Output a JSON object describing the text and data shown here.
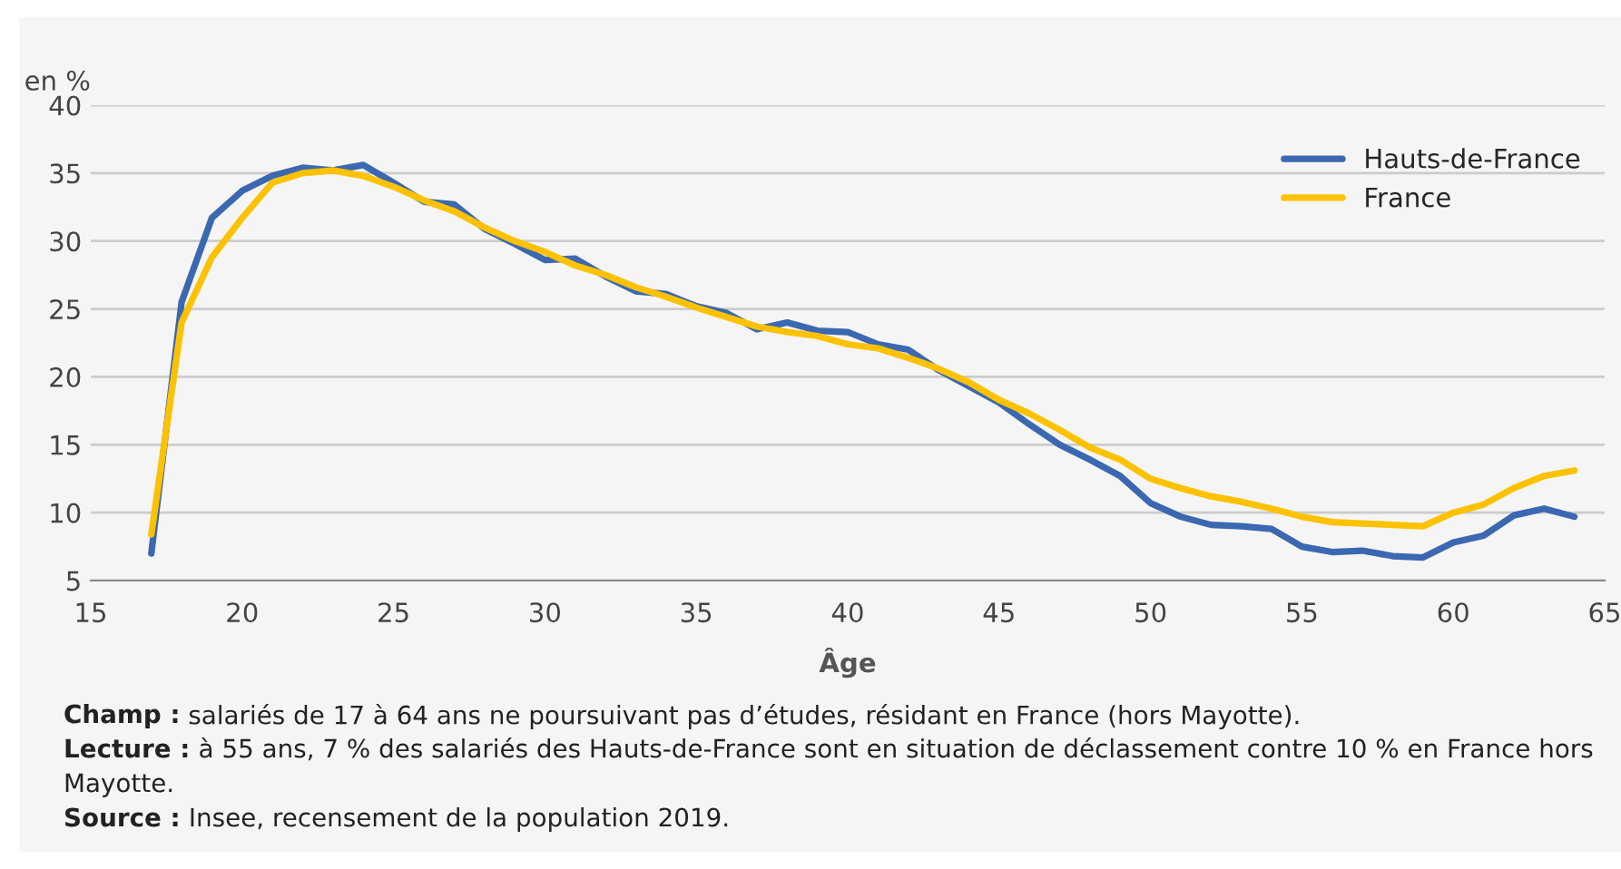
{
  "chart_data": {
    "type": "line",
    "ylabel": "en %",
    "xlabel": "Âge",
    "x": [
      17,
      18,
      19,
      20,
      21,
      22,
      23,
      24,
      25,
      26,
      27,
      28,
      29,
      30,
      31,
      32,
      33,
      34,
      35,
      36,
      37,
      38,
      39,
      40,
      41,
      42,
      43,
      44,
      45,
      46,
      47,
      48,
      49,
      50,
      51,
      52,
      53,
      54,
      55,
      56,
      57,
      58,
      59,
      60,
      61,
      62,
      63,
      64
    ],
    "series": [
      {
        "name": "Hauts-de-France",
        "color": "#3b68b0",
        "values": [
          7,
          25.5,
          31.7,
          33.7,
          34.8,
          35.4,
          35.2,
          35.6,
          34.3,
          32.9,
          32.7,
          30.9,
          29.8,
          28.6,
          28.7,
          27.4,
          26.3,
          26.1,
          25.2,
          24.7,
          23.5,
          24.0,
          23.4,
          23.3,
          22.4,
          22.0,
          20.5,
          19.3,
          18.1,
          16.5,
          15.0,
          13.9,
          12.7,
          10.7,
          9.7,
          9.1,
          9.0,
          8.8,
          7.5,
          7.1,
          7.2,
          6.8,
          6.7,
          7.8,
          8.3,
          9.8,
          10.3,
          9.7
        ]
      },
      {
        "name": "France",
        "color": "#fcc200",
        "values": [
          8.4,
          24,
          28.8,
          31.7,
          34.3,
          35.0,
          35.2,
          34.8,
          34.0,
          33.0,
          32.2,
          31.0,
          30.0,
          29.2,
          28.2,
          27.5,
          26.6,
          25.9,
          25.1,
          24.4,
          23.7,
          23.3,
          23.0,
          22.4,
          22.1,
          21.4,
          20.6,
          19.6,
          18.3,
          17.3,
          16.1,
          14.8,
          13.9,
          12.5,
          11.8,
          11.2,
          10.8,
          10.3,
          9.7,
          9.3,
          9.2,
          9.1,
          9.0,
          10.0,
          10.6,
          11.8,
          12.7,
          13.1
        ]
      }
    ],
    "xlim": [
      15,
      65
    ],
    "xticks": [
      15,
      20,
      25,
      30,
      35,
      40,
      45,
      50,
      55,
      60,
      65
    ],
    "ylim": [
      5,
      40
    ],
    "yticks": [
      5,
      10,
      15,
      20,
      25,
      30,
      35,
      40
    ],
    "grid": "y",
    "legend": "top right",
    "marker": "none",
    "line_style": "solid",
    "annotations": [
      "Champ : salariés de 17 à 64 ans ne poursuivant pas d’études, résidant en France (hors Mayotte).",
      "Lecture : à 55 ans, 7 % des salariés des Hauts-de-France sont en situation de déclassement contre 10 % en France hors Mayotte.",
      "Source : Insee, recensement de la population 2019."
    ]
  }
}
